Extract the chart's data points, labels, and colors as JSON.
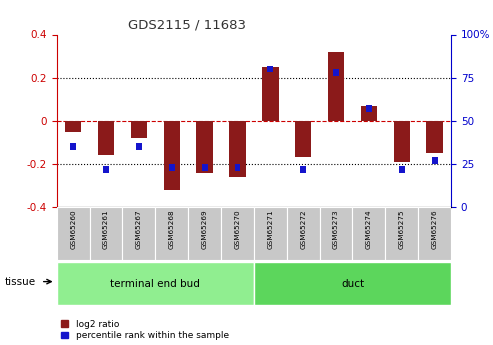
{
  "title": "GDS2115 / 11683",
  "samples": [
    "GSM65260",
    "GSM65261",
    "GSM65267",
    "GSM65268",
    "GSM65269",
    "GSM65270",
    "GSM65271",
    "GSM65272",
    "GSM65273",
    "GSM65274",
    "GSM65275",
    "GSM65276"
  ],
  "log2_ratio": [
    -0.05,
    -0.16,
    -0.08,
    -0.32,
    -0.24,
    -0.26,
    0.25,
    -0.17,
    0.32,
    0.07,
    -0.19,
    -0.15
  ],
  "percentile": [
    35,
    22,
    35,
    23,
    23,
    23,
    80,
    22,
    78,
    57,
    22,
    27
  ],
  "groups": [
    {
      "label": "terminal end bud",
      "start": 0,
      "end": 6,
      "color": "#90EE90"
    },
    {
      "label": "duct",
      "start": 6,
      "end": 12,
      "color": "#5CD65C"
    }
  ],
  "ylim": [
    -0.4,
    0.4
  ],
  "y2lim": [
    0,
    100
  ],
  "bar_color_red": "#8B1A1A",
  "bar_color_blue": "#1414CC",
  "zero_line_color": "#CC0000",
  "dotted_line_color": "#000000",
  "bg_color": "#FFFFFF",
  "plot_bg_color": "#FFFFFF",
  "tick_label_color_left": "#CC0000",
  "tick_label_color_right": "#0000CC",
  "bar_width": 0.5,
  "blue_bar_width": 0.15
}
